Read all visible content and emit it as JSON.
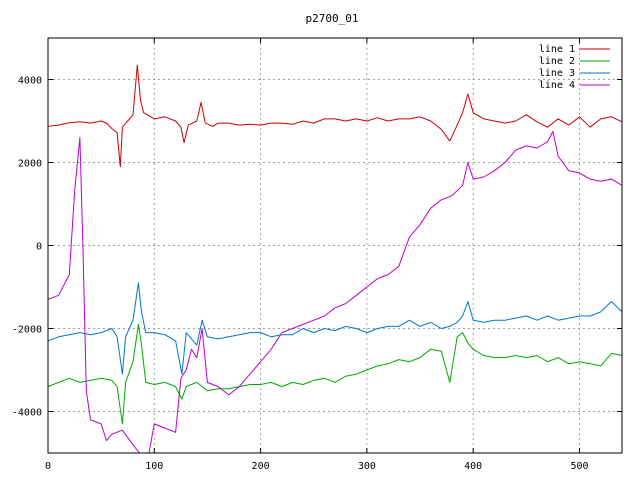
{
  "chart_data": {
    "type": "line",
    "title": "p2700_01",
    "xlabel": "",
    "ylabel": "",
    "xlim": [
      0,
      540
    ],
    "ylim": [
      -5000,
      5000
    ],
    "x_ticks": [
      0,
      100,
      200,
      300,
      400,
      500
    ],
    "y_ticks": [
      -4000,
      -2000,
      0,
      2000,
      4000
    ],
    "grid": true,
    "legend_position": "top-right",
    "series": [
      {
        "name": "line 1",
        "color": "#cc0000",
        "points": [
          [
            0,
            2870
          ],
          [
            10,
            2900
          ],
          [
            20,
            2960
          ],
          [
            30,
            2980
          ],
          [
            40,
            2950
          ],
          [
            50,
            3000
          ],
          [
            55,
            2950
          ],
          [
            60,
            2820
          ],
          [
            65,
            2720
          ],
          [
            68,
            1900
          ],
          [
            70,
            2850
          ],
          [
            75,
            3000
          ],
          [
            80,
            3150
          ],
          [
            84,
            4350
          ],
          [
            87,
            3500
          ],
          [
            90,
            3200
          ],
          [
            100,
            3050
          ],
          [
            110,
            3100
          ],
          [
            120,
            3000
          ],
          [
            125,
            2850
          ],
          [
            128,
            2480
          ],
          [
            132,
            2900
          ],
          [
            140,
            3000
          ],
          [
            144,
            3450
          ],
          [
            148,
            2950
          ],
          [
            155,
            2870
          ],
          [
            160,
            2950
          ],
          [
            170,
            2950
          ],
          [
            180,
            2900
          ],
          [
            190,
            2920
          ],
          [
            200,
            2900
          ],
          [
            210,
            2950
          ],
          [
            220,
            2950
          ],
          [
            230,
            2920
          ],
          [
            240,
            3000
          ],
          [
            250,
            2950
          ],
          [
            260,
            3050
          ],
          [
            270,
            3050
          ],
          [
            280,
            3000
          ],
          [
            290,
            3050
          ],
          [
            300,
            3000
          ],
          [
            310,
            3080
          ],
          [
            320,
            3000
          ],
          [
            330,
            3050
          ],
          [
            340,
            3050
          ],
          [
            350,
            3100
          ],
          [
            360,
            3000
          ],
          [
            370,
            2800
          ],
          [
            378,
            2520
          ],
          [
            385,
            2900
          ],
          [
            390,
            3200
          ],
          [
            395,
            3650
          ],
          [
            400,
            3200
          ],
          [
            410,
            3050
          ],
          [
            420,
            3000
          ],
          [
            430,
            2950
          ],
          [
            440,
            3000
          ],
          [
            450,
            3150
          ],
          [
            460,
            2980
          ],
          [
            470,
            2850
          ],
          [
            480,
            3050
          ],
          [
            490,
            2900
          ],
          [
            500,
            3100
          ],
          [
            510,
            2850
          ],
          [
            520,
            3050
          ],
          [
            530,
            3100
          ],
          [
            540,
            2980
          ]
        ]
      },
      {
        "name": "line 2",
        "color": "#00aa00",
        "points": [
          [
            0,
            -3400
          ],
          [
            10,
            -3300
          ],
          [
            20,
            -3200
          ],
          [
            30,
            -3300
          ],
          [
            40,
            -3250
          ],
          [
            50,
            -3200
          ],
          [
            60,
            -3250
          ],
          [
            65,
            -3400
          ],
          [
            70,
            -4300
          ],
          [
            73,
            -3300
          ],
          [
            80,
            -2800
          ],
          [
            85,
            -1900
          ],
          [
            88,
            -2400
          ],
          [
            92,
            -3300
          ],
          [
            100,
            -3350
          ],
          [
            110,
            -3300
          ],
          [
            120,
            -3400
          ],
          [
            126,
            -3700
          ],
          [
            130,
            -3400
          ],
          [
            140,
            -3300
          ],
          [
            150,
            -3500
          ],
          [
            160,
            -3450
          ],
          [
            170,
            -3450
          ],
          [
            180,
            -3400
          ],
          [
            190,
            -3350
          ],
          [
            200,
            -3350
          ],
          [
            210,
            -3300
          ],
          [
            220,
            -3400
          ],
          [
            230,
            -3300
          ],
          [
            240,
            -3350
          ],
          [
            250,
            -3250
          ],
          [
            260,
            -3200
          ],
          [
            270,
            -3300
          ],
          [
            280,
            -3150
          ],
          [
            290,
            -3100
          ],
          [
            300,
            -3000
          ],
          [
            310,
            -2900
          ],
          [
            320,
            -2850
          ],
          [
            330,
            -2750
          ],
          [
            340,
            -2800
          ],
          [
            350,
            -2700
          ],
          [
            360,
            -2500
          ],
          [
            370,
            -2550
          ],
          [
            378,
            -3300
          ],
          [
            385,
            -2200
          ],
          [
            390,
            -2100
          ],
          [
            395,
            -2350
          ],
          [
            400,
            -2500
          ],
          [
            410,
            -2650
          ],
          [
            420,
            -2700
          ],
          [
            430,
            -2700
          ],
          [
            440,
            -2650
          ],
          [
            450,
            -2700
          ],
          [
            460,
            -2650
          ],
          [
            470,
            -2800
          ],
          [
            480,
            -2700
          ],
          [
            490,
            -2850
          ],
          [
            500,
            -2800
          ],
          [
            510,
            -2850
          ],
          [
            520,
            -2900
          ],
          [
            530,
            -2600
          ],
          [
            540,
            -2650
          ]
        ]
      },
      {
        "name": "line 3",
        "color": "#0077cc",
        "points": [
          [
            0,
            -2300
          ],
          [
            10,
            -2200
          ],
          [
            20,
            -2150
          ],
          [
            30,
            -2100
          ],
          [
            40,
            -2150
          ],
          [
            50,
            -2100
          ],
          [
            60,
            -2000
          ],
          [
            65,
            -2200
          ],
          [
            70,
            -3100
          ],
          [
            73,
            -2200
          ],
          [
            80,
            -1800
          ],
          [
            85,
            -900
          ],
          [
            88,
            -1600
          ],
          [
            92,
            -2100
          ],
          [
            100,
            -2100
          ],
          [
            110,
            -2150
          ],
          [
            120,
            -2300
          ],
          [
            126,
            -3100
          ],
          [
            130,
            -2100
          ],
          [
            140,
            -2400
          ],
          [
            145,
            -1800
          ],
          [
            150,
            -2200
          ],
          [
            160,
            -2250
          ],
          [
            170,
            -2200
          ],
          [
            180,
            -2150
          ],
          [
            190,
            -2100
          ],
          [
            200,
            -2100
          ],
          [
            210,
            -2200
          ],
          [
            220,
            -2150
          ],
          [
            230,
            -2150
          ],
          [
            240,
            -2000
          ],
          [
            250,
            -2100
          ],
          [
            260,
            -2000
          ],
          [
            270,
            -2050
          ],
          [
            280,
            -1950
          ],
          [
            290,
            -2000
          ],
          [
            300,
            -2100
          ],
          [
            310,
            -2000
          ],
          [
            320,
            -1950
          ],
          [
            330,
            -1950
          ],
          [
            340,
            -1800
          ],
          [
            350,
            -1950
          ],
          [
            360,
            -1850
          ],
          [
            370,
            -2000
          ],
          [
            378,
            -1950
          ],
          [
            385,
            -1850
          ],
          [
            390,
            -1700
          ],
          [
            395,
            -1350
          ],
          [
            400,
            -1800
          ],
          [
            410,
            -1850
          ],
          [
            420,
            -1800
          ],
          [
            430,
            -1800
          ],
          [
            440,
            -1750
          ],
          [
            450,
            -1700
          ],
          [
            460,
            -1800
          ],
          [
            470,
            -1700
          ],
          [
            480,
            -1800
          ],
          [
            490,
            -1750
          ],
          [
            500,
            -1700
          ],
          [
            510,
            -1700
          ],
          [
            520,
            -1600
          ],
          [
            530,
            -1350
          ],
          [
            540,
            -1600
          ]
        ]
      },
      {
        "name": "line 4",
        "color": "#bb00cc",
        "points": [
          [
            0,
            -1300
          ],
          [
            10,
            -1200
          ],
          [
            20,
            -700
          ],
          [
            25,
            1300
          ],
          [
            30,
            2600
          ],
          [
            33,
            -200
          ],
          [
            36,
            -3500
          ],
          [
            40,
            -4200
          ],
          [
            50,
            -4300
          ],
          [
            55,
            -4700
          ],
          [
            60,
            -4550
          ],
          [
            70,
            -4450
          ],
          [
            80,
            -4800
          ],
          [
            86,
            -5000
          ],
          [
            95,
            -5000
          ],
          [
            100,
            -4300
          ],
          [
            110,
            -4400
          ],
          [
            120,
            -4500
          ],
          [
            125,
            -3200
          ],
          [
            130,
            -3000
          ],
          [
            135,
            -2500
          ],
          [
            140,
            -2700
          ],
          [
            145,
            -2000
          ],
          [
            150,
            -3300
          ],
          [
            160,
            -3400
          ],
          [
            170,
            -3600
          ],
          [
            180,
            -3400
          ],
          [
            190,
            -3100
          ],
          [
            200,
            -2800
          ],
          [
            210,
            -2500
          ],
          [
            220,
            -2100
          ],
          [
            230,
            -2000
          ],
          [
            240,
            -1900
          ],
          [
            250,
            -1800
          ],
          [
            260,
            -1700
          ],
          [
            270,
            -1500
          ],
          [
            280,
            -1400
          ],
          [
            290,
            -1200
          ],
          [
            300,
            -1000
          ],
          [
            310,
            -800
          ],
          [
            320,
            -700
          ],
          [
            330,
            -500
          ],
          [
            340,
            200
          ],
          [
            350,
            500
          ],
          [
            360,
            900
          ],
          [
            370,
            1100
          ],
          [
            380,
            1200
          ],
          [
            390,
            1450
          ],
          [
            395,
            2000
          ],
          [
            400,
            1600
          ],
          [
            410,
            1650
          ],
          [
            420,
            1800
          ],
          [
            430,
            2000
          ],
          [
            440,
            2300
          ],
          [
            450,
            2400
          ],
          [
            460,
            2350
          ],
          [
            470,
            2500
          ],
          [
            475,
            2750
          ],
          [
            480,
            2150
          ],
          [
            490,
            1800
          ],
          [
            500,
            1750
          ],
          [
            510,
            1600
          ],
          [
            520,
            1550
          ],
          [
            530,
            1600
          ],
          [
            540,
            1450
          ]
        ]
      }
    ]
  }
}
